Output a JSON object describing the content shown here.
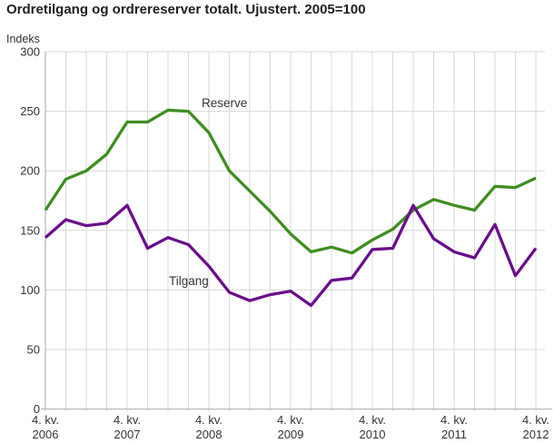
{
  "chart_data": {
    "type": "line",
    "title": "Ordretilgang og ordrereserver totalt. Ujustert. 2005=100",
    "ylabel": "Indeks",
    "ylim": [
      0,
      300
    ],
    "ytick_step": 50,
    "yticks": [
      300,
      250,
      200,
      150,
      100,
      50,
      0
    ],
    "grid": "on",
    "legend": "inline-labels",
    "x_axis": {
      "unit": "quarter",
      "points_total": 25,
      "first_point": "4. kv. 2006",
      "last_point": "4. kv. 2012",
      "ticks": [
        {
          "pos": 0,
          "line1": "4. kv.",
          "line2": "2006"
        },
        {
          "pos": 4,
          "line1": "4. kv.",
          "line2": "2007"
        },
        {
          "pos": 8,
          "line1": "4. kv.",
          "line2": "2008"
        },
        {
          "pos": 12,
          "line1": "4. kv.",
          "line2": "2009"
        },
        {
          "pos": 16,
          "line1": "4. kv.",
          "line2": "2010"
        },
        {
          "pos": 20,
          "line1": "4. kv.",
          "line2": "2011"
        },
        {
          "pos": 24,
          "line1": "4. kv.",
          "line2": "2012"
        }
      ]
    },
    "series": [
      {
        "name": "Reserve",
        "color": "#3f8e20",
        "values": [
          167,
          193,
          200,
          214,
          241,
          241,
          251,
          250,
          232,
          200,
          183,
          166,
          147,
          132,
          136,
          131,
          142,
          151,
          167,
          176,
          171,
          167,
          187,
          186,
          194
        ],
        "label_anchor": {
          "x": 222,
          "y": 118
        }
      },
      {
        "name": "Tilgang",
        "color": "#6a0d8c",
        "values": [
          144,
          159,
          154,
          156,
          171,
          135,
          144,
          138,
          120,
          98,
          91,
          96,
          99,
          87,
          108,
          110,
          134,
          135,
          171,
          143,
          132,
          127,
          155,
          112,
          135
        ],
        "label_anchor": {
          "x": 186,
          "y": 314
        }
      }
    ],
    "colors": {
      "grid": "#d9d9d9",
      "axis": "#b9b9b9",
      "tick_text": "#333333",
      "title_text": "#1f1f1f"
    }
  }
}
